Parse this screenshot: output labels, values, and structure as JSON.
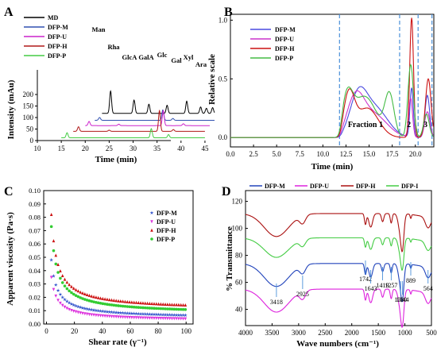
{
  "chart_data": [
    {
      "panel": "A",
      "type": "line",
      "xlabel": "Time (min)",
      "ylabel": "Intensity (mAu)",
      "xlim": [
        10,
        47
      ],
      "ylim": [
        0,
        300
      ],
      "xticks": [
        10,
        15,
        20,
        25,
        30,
        35,
        40,
        45
      ],
      "yticks": [
        0,
        50,
        100,
        150,
        200
      ],
      "series": [
        {
          "name": "MD",
          "color": "#000000",
          "offset": 118,
          "peaks": [
            [
              25.3,
              97
            ],
            [
              30.2,
              58
            ],
            [
              33.3,
              40
            ],
            [
              37.1,
              35
            ],
            [
              41.2,
              53
            ],
            [
              44.1,
              28
            ],
            [
              45.3,
              22
            ],
            [
              46.6,
              25
            ]
          ]
        },
        {
          "name": "DFP-M",
          "color": "#3050b0",
          "offset": 88,
          "peaks": [
            [
              23.0,
              12
            ],
            [
              36.2,
              45
            ],
            [
              38.3,
              8
            ]
          ]
        },
        {
          "name": "DFP-U",
          "color": "#cc22cc",
          "offset": 65,
          "peaks": [
            [
              20.8,
              18
            ],
            [
              27.0,
              6
            ],
            [
              36.3,
              65
            ],
            [
              40.5,
              8
            ]
          ]
        },
        {
          "name": "DFP-H",
          "color": "#b01818",
          "offset": 40,
          "peaks": [
            [
              18.6,
              20
            ],
            [
              25.0,
              5
            ],
            [
              35.5,
              90
            ],
            [
              38.4,
              8
            ]
          ]
        },
        {
          "name": "DFP-P",
          "color": "#44cc44",
          "offset": 12,
          "peaks": [
            [
              16.2,
              22
            ],
            [
              33.8,
              40
            ],
            [
              37.4,
              14
            ]
          ]
        }
      ],
      "annotations": [
        "Man",
        "Rha",
        "GlcA",
        "GalA",
        "Glc",
        "Gal",
        "Xyl",
        "Ara"
      ]
    },
    {
      "panel": "B",
      "type": "line",
      "xlabel": "Time (min)",
      "ylabel": "Relative scale",
      "xlim": [
        0,
        22
      ],
      "ylim": [
        -0.08,
        1.05
      ],
      "xticks": [
        0.0,
        2.5,
        5.0,
        7.5,
        10.0,
        12.5,
        15.0,
        17.5,
        20.0
      ],
      "yticks": [
        0.0,
        0.5,
        1.0
      ],
      "dividers": [
        11.8,
        18.3,
        20.3,
        21.8
      ],
      "fraction_labels": [
        {
          "text": "Fraction 1",
          "x": 14.6
        },
        {
          "text": "2",
          "x": 19.3
        },
        {
          "text": "3",
          "x": 21.1
        }
      ],
      "series": [
        {
          "name": "DFP-M",
          "color": "#4a4ae0",
          "peaks": [
            [
              13.8,
              0.31,
              0.9
            ],
            [
              15.6,
              0.25,
              1.4
            ],
            [
              19.6,
              0.42,
              0.18
            ],
            [
              21.3,
              0.36,
              0.25
            ]
          ]
        },
        {
          "name": "DFP-U",
          "color": "#cc33cc",
          "peaks": [
            [
              13.5,
              0.3,
              0.9
            ],
            [
              15.4,
              0.2,
              1.5
            ],
            [
              19.5,
              0.33,
              0.2
            ],
            [
              21.3,
              0.22,
              0.28
            ]
          ]
        },
        {
          "name": "DFP-H",
          "color": "#cc1111",
          "peaks": [
            [
              12.8,
              0.35,
              0.6
            ],
            [
              14.8,
              0.25,
              1.2
            ],
            [
              19.6,
              1.02,
              0.2
            ],
            [
              21.4,
              0.5,
              0.3
            ]
          ]
        },
        {
          "name": "DFP-P",
          "color": "#44bb44",
          "peaks": [
            [
              12.6,
              0.3,
              0.6
            ],
            [
              14.5,
              0.35,
              1.3
            ],
            [
              17.2,
              0.35,
              0.5
            ],
            [
              19.5,
              0.62,
              0.3
            ],
            [
              21.2,
              0.2,
              0.3
            ]
          ]
        }
      ]
    },
    {
      "panel": "C",
      "type": "scatter",
      "xlabel": "Shear rate (γ⁻¹)",
      "ylabel": "Apparent viscosity (Pa·s)",
      "xlim": [
        -2,
        105
      ],
      "ylim": [
        0,
        0.1
      ],
      "xticks": [
        0,
        20,
        40,
        60,
        80,
        100
      ],
      "yticks": [
        0.0,
        0.01,
        0.02,
        0.03,
        0.04,
        0.05,
        0.06,
        0.07,
        0.08,
        0.09,
        0.1
      ],
      "series": [
        {
          "name": "DFP-M",
          "color": "#3355cc",
          "marker": "star",
          "v_initial": 0.048,
          "v_final": 0.004
        },
        {
          "name": "DFP-U",
          "color": "#dd33dd",
          "marker": "triangle-down",
          "v_initial": 0.035,
          "v_final": 0.002
        },
        {
          "name": "DFP-H",
          "color": "#cc1111",
          "marker": "triangle-up",
          "v_initial": 0.082,
          "v_final": 0.01
        },
        {
          "name": "DFP-P",
          "color": "#33cc33",
          "marker": "circle",
          "v_initial": 0.073,
          "v_final": 0.007
        }
      ]
    },
    {
      "panel": "D",
      "type": "line",
      "xlabel": "Wave numbers (cm⁻¹)",
      "ylabel": "% Transmittance",
      "xlim": [
        4000,
        500
      ],
      "ylim": [
        28,
        128
      ],
      "xticks": [
        4000,
        3500,
        3000,
        2500,
        2000,
        1500,
        1000,
        500
      ],
      "yticks": [
        40,
        60,
        80,
        100,
        120
      ],
      "peak_labels": [
        "3418",
        "2925",
        "1742",
        "1643",
        "1419",
        "1257",
        "1080",
        "1044",
        "889",
        "564"
      ],
      "series": [
        {
          "name": "DFP-M",
          "color": "#2244bb",
          "baseline": 74,
          "scale": 1.0
        },
        {
          "name": "DFP-U",
          "color": "#dd22dd",
          "baseline": 55,
          "scale": 1.0
        },
        {
          "name": "DFP-H",
          "color": "#aa1111",
          "baseline": 111,
          "scale": 1.0
        },
        {
          "name": "DFP-I",
          "color": "#44cc44",
          "baseline": 93,
          "scale": 0.85
        }
      ]
    }
  ]
}
